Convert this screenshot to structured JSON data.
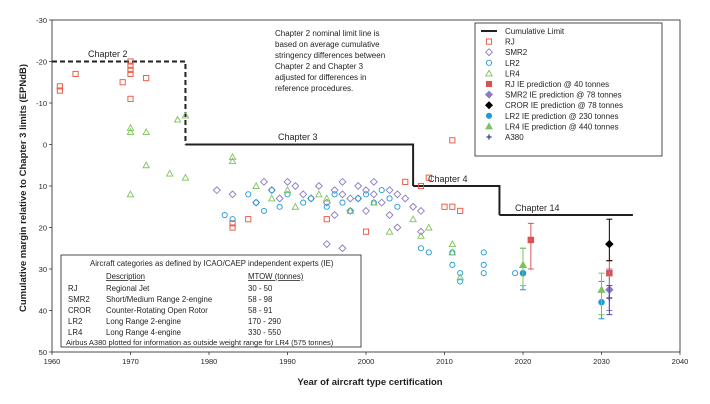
{
  "chart_data": {
    "type": "scatter",
    "xlabel": "Year of aircraft type certification",
    "ylabel": "Cumulative margin relative to Chapter 3 limits (EPNdB)",
    "xlim": [
      1960,
      2040
    ],
    "ylim": [
      -30,
      50
    ],
    "y_inverted": true,
    "x_ticks": [
      1960,
      1970,
      1980,
      1990,
      2000,
      2010,
      2020,
      2030,
      2040
    ],
    "y_ticks": [
      -30,
      -20,
      -10,
      0,
      10,
      20,
      30,
      40,
      50
    ],
    "note": [
      "Chapter 2 nominal limit line is",
      "based on average cumulative",
      "stringency differences between",
      "Chapter 2 and Chapter 3",
      "adjusted for differences in",
      "reference procedures."
    ],
    "limit_line": {
      "name": "Cumulative Limit",
      "chapter2": {
        "label": "Chapter 2",
        "points": [
          [
            1960,
            -20
          ],
          [
            1977,
            -20
          ],
          [
            1977,
            0
          ]
        ]
      },
      "steps": [
        {
          "label": "Chapter 3",
          "points": [
            [
              1977,
              0
            ],
            [
              2006,
              0
            ],
            [
              2006,
              10
            ]
          ]
        },
        {
          "label": "Chapter 4",
          "points": [
            [
              2006,
              10
            ],
            [
              2017,
              10
            ],
            [
              2017,
              17
            ]
          ]
        },
        {
          "label": "Chapter 14",
          "points": [
            [
              2017,
              17
            ],
            [
              2034,
              17
            ]
          ]
        }
      ]
    },
    "series": [
      {
        "name": "RJ",
        "marker": "square-open",
        "color": "#e8503a",
        "points": [
          [
            1961,
            -13
          ],
          [
            1961,
            -14
          ],
          [
            1963,
            -17
          ],
          [
            1970,
            -18
          ],
          [
            1970,
            -17
          ],
          [
            1970,
            -20
          ],
          [
            1970,
            -19
          ],
          [
            1969,
            -15
          ],
          [
            1970,
            -11
          ],
          [
            1972,
            -16
          ],
          [
            1983,
            19
          ],
          [
            1983,
            20
          ],
          [
            1985,
            18
          ],
          [
            1995,
            18
          ],
          [
            2000,
            21
          ],
          [
            2005,
            9
          ],
          [
            2007,
            10
          ],
          [
            2008,
            8
          ],
          [
            2010,
            15
          ],
          [
            2011,
            -1
          ],
          [
            2011,
            15
          ],
          [
            2012,
            16
          ]
        ]
      },
      {
        "name": "SMR2",
        "marker": "diamond-open",
        "color": "#8b7cc0",
        "points": [
          [
            1981,
            11
          ],
          [
            1983,
            12
          ],
          [
            1986,
            14
          ],
          [
            1987,
            9
          ],
          [
            1988,
            11
          ],
          [
            1989,
            13
          ],
          [
            1990,
            9
          ],
          [
            1991,
            10
          ],
          [
            1992,
            12
          ],
          [
            1993,
            13
          ],
          [
            1994,
            10
          ],
          [
            1995,
            14
          ],
          [
            1996,
            11
          ],
          [
            1996,
            17
          ],
          [
            1997,
            12
          ],
          [
            1997,
            9
          ],
          [
            1998,
            13
          ],
          [
            1998,
            16
          ],
          [
            1999,
            10
          ],
          [
            1999,
            13
          ],
          [
            2000,
            11
          ],
          [
            2000,
            16
          ],
          [
            2001,
            12
          ],
          [
            2001,
            9
          ],
          [
            2002,
            14
          ],
          [
            2003,
            11
          ],
          [
            2003,
            17
          ],
          [
            2004,
            12
          ],
          [
            2005,
            13
          ],
          [
            2006,
            15
          ],
          [
            2007,
            16
          ],
          [
            1995,
            24
          ],
          [
            1997,
            25
          ],
          [
            2004,
            20
          ],
          [
            2007,
            21
          ]
        ]
      },
      {
        "name": "LR2",
        "marker": "circle-open",
        "color": "#1e9ad6",
        "points": [
          [
            1982,
            17
          ],
          [
            1983,
            18
          ],
          [
            1985,
            12
          ],
          [
            1986,
            14
          ],
          [
            1987,
            16
          ],
          [
            1988,
            11
          ],
          [
            1989,
            15
          ],
          [
            1990,
            12
          ],
          [
            1992,
            14
          ],
          [
            1993,
            13
          ],
          [
            1995,
            15
          ],
          [
            1996,
            12
          ],
          [
            1997,
            14
          ],
          [
            1998,
            16
          ],
          [
            1999,
            13
          ],
          [
            2000,
            12
          ],
          [
            2001,
            14
          ],
          [
            2002,
            11
          ],
          [
            2003,
            13
          ],
          [
            2004,
            15
          ],
          [
            2007,
            25
          ],
          [
            2008,
            26
          ],
          [
            2011,
            26
          ],
          [
            2011,
            29
          ],
          [
            2012,
            31
          ],
          [
            2012,
            33
          ],
          [
            2015,
            26
          ],
          [
            2015,
            29
          ],
          [
            2015,
            31
          ],
          [
            2019,
            31
          ]
        ]
      },
      {
        "name": "LR4",
        "marker": "triangle-open",
        "color": "#7dc35b",
        "points": [
          [
            1970,
            -4
          ],
          [
            1970,
            -3
          ],
          [
            1970,
            12
          ],
          [
            1972,
            -3
          ],
          [
            1972,
            5
          ],
          [
            1975,
            7
          ],
          [
            1976,
            -6
          ],
          [
            1977,
            -7
          ],
          [
            1977,
            8
          ],
          [
            1983,
            4
          ],
          [
            1983,
            3
          ],
          [
            1986,
            10
          ],
          [
            1988,
            13
          ],
          [
            1990,
            11
          ],
          [
            1991,
            15
          ],
          [
            1994,
            12
          ],
          [
            1995,
            13
          ],
          [
            1998,
            16
          ],
          [
            2001,
            14
          ],
          [
            2003,
            21
          ],
          [
            2006,
            18
          ],
          [
            2007,
            22
          ],
          [
            2008,
            20
          ],
          [
            2011,
            24
          ],
          [
            2011,
            26
          ],
          [
            2012,
            32
          ]
        ]
      }
    ],
    "predictions": [
      {
        "name": "RJ IE prediction @ 40 tonnes",
        "marker": "square-filled",
        "color": "#d9534f",
        "points": [
          {
            "x": 2021,
            "y": 23,
            "lo": 19,
            "hi": 30
          },
          {
            "x": 2031,
            "y": 31,
            "lo": 28,
            "hi": 37
          }
        ]
      },
      {
        "name": "SMR2 IE prediction @ 78 tonnes",
        "marker": "diamond-filled",
        "color": "#8b7cc0",
        "points": [
          {
            "x": 2031,
            "y": 35,
            "lo": 30,
            "hi": 40
          }
        ]
      },
      {
        "name": "CROR IE prediction @ 78 tonnes",
        "marker": "diamond-filled",
        "color": "#000000",
        "points": [
          {
            "x": 2031,
            "y": 24,
            "lo": 18,
            "hi": 28
          }
        ]
      },
      {
        "name": "LR2 IE prediction @ 230 tonnes",
        "marker": "circle-filled",
        "color": "#1e9ad6",
        "points": [
          {
            "x": 2020,
            "y": 31,
            "lo": 25,
            "hi": 35
          },
          {
            "x": 2030,
            "y": 38,
            "lo": 33,
            "hi": 42
          }
        ]
      },
      {
        "name": "LR4 IE prediction @ 440 tonnes",
        "marker": "triangle-filled",
        "color": "#7dc35b",
        "points": [
          {
            "x": 2020,
            "y": 29,
            "lo": 25,
            "hi": 34
          },
          {
            "x": 2030,
            "y": 35,
            "lo": 31,
            "hi": 41
          }
        ]
      },
      {
        "name": "A380",
        "marker": "cross",
        "color": "#4a4aa0",
        "points": [
          {
            "x": 2031,
            "y": 37,
            "lo": 34,
            "hi": 41
          }
        ]
      }
    ],
    "legend_position": "top-right",
    "categories_table": {
      "title": "Aircraft categories as defined by ICAO/CAEP independent experts (IE)",
      "headers": [
        "",
        "Description",
        "MTOW (tonnes)"
      ],
      "rows": [
        [
          "RJ",
          "Regional Jet",
          "30 - 50"
        ],
        [
          "SMR2",
          "Short/Medium Range 2-engine",
          "58 - 98"
        ],
        [
          "CROR",
          "Counter-Rotating Open Rotor",
          "58 - 91"
        ],
        [
          "LR2",
          "Long Range 2-engine",
          "170 - 290"
        ],
        [
          "LR4",
          "Long Range 4-engine",
          "330 - 550"
        ]
      ],
      "footnote": "Airbus A380 plotted for information as outside weight range for LR4 (575 tonnes)"
    }
  }
}
